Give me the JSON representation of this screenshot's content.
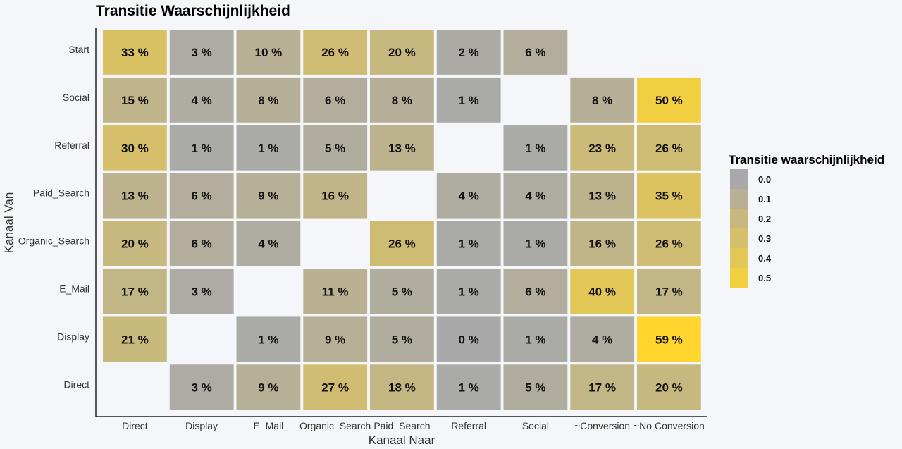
{
  "chart_data": {
    "type": "heatmap",
    "title": "Transitie Waarschijnlijkheid",
    "xlabel": "Kanaal Naar",
    "ylabel": "Kanaal Van",
    "x_categories": [
      "Direct",
      "Display",
      "E_Mail",
      "Organic_Search",
      "Paid_Search",
      "Referral",
      "Social",
      "~Conversion",
      "~No Conversion"
    ],
    "y_categories": [
      "Start",
      "Social",
      "Referral",
      "Paid_Search",
      "Organic_Search",
      "E_Mail",
      "Display",
      "Direct"
    ],
    "values": [
      [
        0.33,
        0.03,
        0.1,
        0.26,
        0.2,
        0.02,
        0.06,
        null,
        null
      ],
      [
        0.15,
        0.04,
        0.08,
        0.06,
        0.08,
        0.01,
        null,
        0.08,
        0.5
      ],
      [
        0.3,
        0.01,
        0.01,
        0.05,
        0.13,
        null,
        0.01,
        0.23,
        0.26
      ],
      [
        0.13,
        0.06,
        0.09,
        0.16,
        null,
        0.04,
        0.04,
        0.13,
        0.35
      ],
      [
        0.2,
        0.06,
        0.04,
        null,
        0.26,
        0.01,
        0.01,
        0.16,
        0.26
      ],
      [
        0.17,
        0.03,
        null,
        0.11,
        0.05,
        0.01,
        0.06,
        0.4,
        0.17
      ],
      [
        0.21,
        null,
        0.01,
        0.09,
        0.05,
        0.0,
        0.01,
        0.04,
        0.59
      ],
      [
        null,
        0.03,
        0.09,
        0.27,
        0.18,
        0.01,
        0.05,
        0.17,
        0.2
      ]
    ],
    "labels": [
      [
        "33 %",
        "3 %",
        "10 %",
        "26 %",
        "20 %",
        "2 %",
        "6 %",
        null,
        null
      ],
      [
        "15 %",
        "4 %",
        "8 %",
        "6 %",
        "8 %",
        "1 %",
        null,
        "8 %",
        "50 %"
      ],
      [
        "30 %",
        "1 %",
        "1 %",
        "5 %",
        "13 %",
        null,
        "1 %",
        "23 %",
        "26 %"
      ],
      [
        "13 %",
        "6 %",
        "9 %",
        "16 %",
        null,
        "4 %",
        "4 %",
        "13 %",
        "35 %"
      ],
      [
        "20 %",
        "6 %",
        "4 %",
        null,
        "26 %",
        "1 %",
        "1 %",
        "16 %",
        "26 %"
      ],
      [
        "17 %",
        "3 %",
        null,
        "11 %",
        "5 %",
        "1 %",
        "6 %",
        "40 %",
        "17 %"
      ],
      [
        "21 %",
        null,
        "1 %",
        "9 %",
        "5 %",
        "0 %",
        "1 %",
        "4 %",
        "59 %"
      ],
      [
        null,
        "3 %",
        "9 %",
        "27 %",
        "18 %",
        "1 %",
        "5 %",
        "17 %",
        "20 %"
      ]
    ],
    "color_scale": {
      "low": "#a9a9a9",
      "high": "#ffd52e",
      "domain": [
        0,
        0.59
      ]
    },
    "legend": {
      "title": "Transitie waarschijnlijkheid",
      "placement": "right",
      "entries": [
        "0.0",
        "0.1",
        "0.2",
        "0.3",
        "0.4",
        "0.5"
      ]
    },
    "grid": false
  }
}
